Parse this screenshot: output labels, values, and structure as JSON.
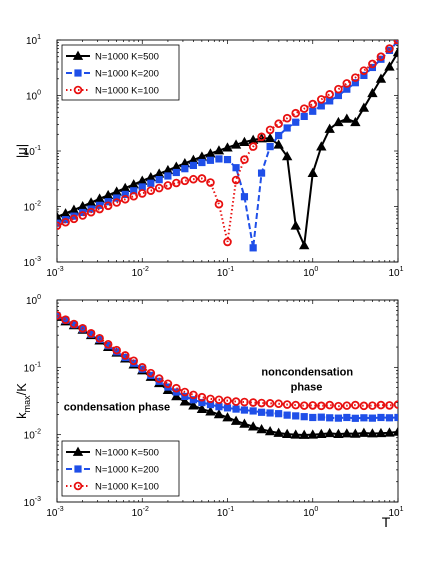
{
  "chart_data": [
    {
      "type": "line",
      "xlabel": "",
      "ylabel": "|μ|",
      "xscale": "log",
      "yscale": "log",
      "xlim": [
        0.001,
        10
      ],
      "ylim": [
        0.001,
        10
      ],
      "xticks": [
        0.001,
        0.01,
        0.1,
        1,
        10
      ],
      "xtick_labels": [
        [
          "10",
          "-3"
        ],
        [
          "10",
          "-2"
        ],
        [
          "10",
          "-1"
        ],
        [
          "10",
          "0"
        ],
        [
          "10",
          "1"
        ]
      ],
      "yticks": [
        0.001,
        0.01,
        0.1,
        1,
        10
      ],
      "ytick_labels": [
        [
          "10",
          "-3"
        ],
        [
          "10",
          "-2"
        ],
        [
          "10",
          "-1"
        ],
        [
          "10",
          "0"
        ],
        [
          "10",
          "1"
        ]
      ],
      "legend_position": "top-left",
      "grid": false,
      "series": [
        {
          "name": "N=1000 K=500",
          "color": "#000000",
          "marker": "triangle",
          "line": "solid",
          "x": [
            0.001,
            0.00126,
            0.00158,
            0.002,
            0.00251,
            0.00316,
            0.00398,
            0.00501,
            0.00631,
            0.00794,
            0.01,
            0.0126,
            0.0158,
            0.02,
            0.0251,
            0.0316,
            0.0398,
            0.0501,
            0.0631,
            0.0794,
            0.1,
            0.126,
            0.158,
            0.2,
            0.251,
            0.316,
            0.398,
            0.501,
            0.631,
            0.794,
            1,
            1.26,
            1.58,
            2,
            2.51,
            3.16,
            3.98,
            5.01,
            6.31,
            7.94,
            10
          ],
          "y": [
            0.0065,
            0.0075,
            0.0087,
            0.0101,
            0.0118,
            0.0138,
            0.016,
            0.0185,
            0.0215,
            0.025,
            0.029,
            0.0335,
            0.039,
            0.045,
            0.052,
            0.06,
            0.069,
            0.079,
            0.09,
            0.102,
            0.115,
            0.13,
            0.145,
            0.158,
            0.168,
            0.17,
            0.13,
            0.08,
            0.0045,
            0.002,
            0.04,
            0.12,
            0.25,
            0.33,
            0.38,
            0.33,
            0.6,
            1.1,
            2.0,
            3.3,
            6.0
          ]
        },
        {
          "name": "N=1000 K=200",
          "color": "#1f4fe8",
          "marker": "square",
          "line": "dashed",
          "x": [
            0.001,
            0.00126,
            0.00158,
            0.002,
            0.00251,
            0.00316,
            0.00398,
            0.00501,
            0.00631,
            0.00794,
            0.01,
            0.0126,
            0.0158,
            0.02,
            0.0251,
            0.0316,
            0.0398,
            0.0501,
            0.0631,
            0.0794,
            0.1,
            0.126,
            0.158,
            0.2,
            0.251,
            0.316,
            0.398,
            0.501,
            0.631,
            0.794,
            1,
            1.26,
            1.58,
            2,
            2.51,
            3.16,
            3.98,
            5.01,
            6.31,
            7.94,
            10
          ],
          "y": [
            0.005,
            0.0058,
            0.0067,
            0.0078,
            0.009,
            0.0105,
            0.0122,
            0.0142,
            0.0165,
            0.0192,
            0.0225,
            0.0262,
            0.0305,
            0.0355,
            0.041,
            0.048,
            0.055,
            0.062,
            0.068,
            0.072,
            0.07,
            0.05,
            0.015,
            0.0018,
            0.04,
            0.12,
            0.19,
            0.26,
            0.33,
            0.42,
            0.52,
            0.65,
            0.8,
            1.0,
            1.3,
            1.7,
            2.3,
            3.2,
            4.5,
            6.5,
            9.5
          ]
        },
        {
          "name": "N=1000 K=100",
          "color": "#e81010",
          "marker": "circle",
          "line": "dotted",
          "x": [
            0.001,
            0.00126,
            0.00158,
            0.002,
            0.00251,
            0.00316,
            0.00398,
            0.00501,
            0.00631,
            0.00794,
            0.01,
            0.0126,
            0.0158,
            0.02,
            0.0251,
            0.0316,
            0.0398,
            0.0501,
            0.0631,
            0.0794,
            0.1,
            0.126,
            0.158,
            0.2,
            0.251,
            0.316,
            0.398,
            0.501,
            0.631,
            0.794,
            1,
            1.26,
            1.58,
            2,
            2.51,
            3.16,
            3.98,
            5.01,
            6.31,
            7.94,
            10
          ],
          "y": [
            0.0045,
            0.0052,
            0.006,
            0.0069,
            0.0079,
            0.009,
            0.0103,
            0.0118,
            0.0135,
            0.0153,
            0.0172,
            0.0193,
            0.0215,
            0.024,
            0.0265,
            0.029,
            0.031,
            0.032,
            0.027,
            0.011,
            0.0023,
            0.03,
            0.07,
            0.12,
            0.18,
            0.24,
            0.31,
            0.39,
            0.48,
            0.58,
            0.7,
            0.85,
            1.05,
            1.3,
            1.65,
            2.1,
            2.8,
            3.7,
            5.0,
            7.0,
            10.0
          ]
        }
      ]
    },
    {
      "type": "line",
      "xlabel": "T",
      "ylabel": "k_max/K",
      "xscale": "log",
      "yscale": "log",
      "xlim": [
        0.001,
        10
      ],
      "ylim": [
        0.001,
        1
      ],
      "xticks": [
        0.001,
        0.01,
        0.1,
        1,
        10
      ],
      "xtick_labels": [
        [
          "10",
          "-3"
        ],
        [
          "10",
          "-2"
        ],
        [
          "10",
          "-1"
        ],
        [
          "10",
          "0"
        ],
        [
          "10",
          "1"
        ]
      ],
      "yticks": [
        0.001,
        0.01,
        0.1,
        1
      ],
      "ytick_labels": [
        [
          "10",
          "-3"
        ],
        [
          "10",
          "-2"
        ],
        [
          "10",
          "-1"
        ],
        [
          "10",
          "0"
        ]
      ],
      "legend_position": "bottom-left",
      "grid": false,
      "annotations": [
        {
          "text": "noncondensation",
          "x": 0.25,
          "y": 0.075
        },
        {
          "text": "phase",
          "x": 0.55,
          "y": 0.045
        },
        {
          "text": "condensation phase",
          "x": 0.0012,
          "y": 0.023
        }
      ],
      "series": [
        {
          "name": "N=1000 K=500",
          "color": "#000000",
          "marker": "triangle",
          "line": "solid",
          "x": [
            0.001,
            0.00126,
            0.00158,
            0.002,
            0.00251,
            0.00316,
            0.00398,
            0.00501,
            0.00631,
            0.00794,
            0.01,
            0.0126,
            0.0158,
            0.02,
            0.0251,
            0.0316,
            0.0398,
            0.0501,
            0.0631,
            0.0794,
            0.1,
            0.126,
            0.158,
            0.2,
            0.251,
            0.316,
            0.398,
            0.501,
            0.631,
            0.794,
            1,
            1.26,
            1.58,
            2,
            2.51,
            3.16,
            3.98,
            5.01,
            6.31,
            7.94,
            10
          ],
          "y": [
            0.56,
            0.48,
            0.42,
            0.36,
            0.3,
            0.25,
            0.2,
            0.165,
            0.135,
            0.11,
            0.09,
            0.072,
            0.058,
            0.046,
            0.037,
            0.031,
            0.027,
            0.024,
            0.022,
            0.02,
            0.018,
            0.016,
            0.0145,
            0.0132,
            0.012,
            0.0112,
            0.0106,
            0.0102,
            0.01,
            0.0099,
            0.01,
            0.0102,
            0.0105,
            0.0102,
            0.0104,
            0.0103,
            0.0106,
            0.0104,
            0.0105,
            0.0107,
            0.011
          ]
        },
        {
          "name": "N=1000 K=200",
          "color": "#1f4fe8",
          "marker": "square",
          "line": "dashed",
          "x": [
            0.001,
            0.00126,
            0.00158,
            0.002,
            0.00251,
            0.00316,
            0.00398,
            0.00501,
            0.00631,
            0.00794,
            0.01,
            0.0126,
            0.0158,
            0.02,
            0.0251,
            0.0316,
            0.0398,
            0.0501,
            0.0631,
            0.0794,
            0.1,
            0.126,
            0.158,
            0.2,
            0.251,
            0.316,
            0.398,
            0.501,
            0.631,
            0.794,
            1,
            1.26,
            1.58,
            2,
            2.51,
            3.16,
            3.98,
            5.01,
            6.31,
            7.94,
            10
          ],
          "y": [
            0.58,
            0.5,
            0.43,
            0.37,
            0.31,
            0.26,
            0.21,
            0.17,
            0.14,
            0.115,
            0.094,
            0.076,
            0.062,
            0.051,
            0.043,
            0.037,
            0.033,
            0.03,
            0.028,
            0.026,
            0.025,
            0.024,
            0.0232,
            0.0225,
            0.0215,
            0.021,
            0.0205,
            0.0195,
            0.019,
            0.0185,
            0.018,
            0.0182,
            0.0178,
            0.0176,
            0.018,
            0.0175,
            0.0178,
            0.0176,
            0.018,
            0.0178,
            0.018
          ]
        },
        {
          "name": "N=1000 K=100",
          "color": "#e81010",
          "marker": "circle",
          "line": "dotted",
          "x": [
            0.001,
            0.00126,
            0.00158,
            0.002,
            0.00251,
            0.00316,
            0.00398,
            0.00501,
            0.00631,
            0.00794,
            0.01,
            0.0126,
            0.0158,
            0.02,
            0.0251,
            0.0316,
            0.0398,
            0.0501,
            0.0631,
            0.0794,
            0.1,
            0.126,
            0.158,
            0.2,
            0.251,
            0.316,
            0.398,
            0.501,
            0.631,
            0.794,
            1,
            1.26,
            1.58,
            2,
            2.51,
            3.16,
            3.98,
            5.01,
            6.31,
            7.94,
            10
          ],
          "y": [
            0.59,
            0.51,
            0.44,
            0.38,
            0.32,
            0.27,
            0.22,
            0.18,
            0.15,
            0.125,
            0.1,
            0.082,
            0.068,
            0.057,
            0.049,
            0.043,
            0.039,
            0.036,
            0.034,
            0.033,
            0.032,
            0.031,
            0.0305,
            0.03,
            0.0295,
            0.0292,
            0.0288,
            0.028,
            0.0275,
            0.027,
            0.0272,
            0.0268,
            0.0275,
            0.0265,
            0.027,
            0.0275,
            0.0268,
            0.027,
            0.0275,
            0.0272,
            0.028
          ]
        }
      ]
    }
  ]
}
